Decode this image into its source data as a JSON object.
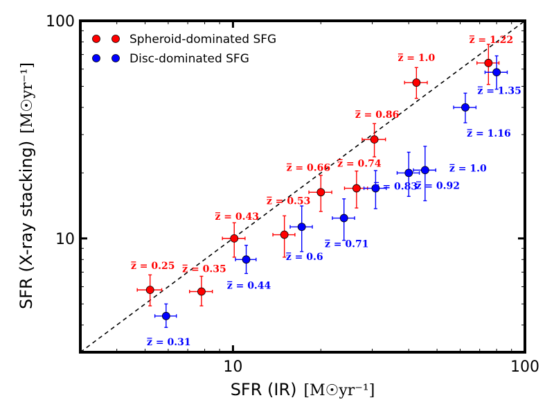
{
  "chart_data": {
    "type": "scatter",
    "title": "",
    "xlabel": "SFR (IR)",
    "xlabel_unit": "[M☉yr⁻¹]",
    "ylabel": "SFR (X-ray stacking)",
    "ylabel_unit": "[M☉yr⁻¹]",
    "xscale": "log",
    "yscale": "log",
    "xlim": [
      3,
      100
    ],
    "ylim": [
      3,
      100
    ],
    "xticks": [
      {
        "value": 10,
        "label": "10"
      },
      {
        "value": 100,
        "label": "100"
      }
    ],
    "yticks": [
      {
        "value": 10,
        "label": "10"
      },
      {
        "value": 100,
        "label": "100"
      }
    ],
    "grid": false,
    "legend_position": "top-left",
    "reference_line": {
      "type": "one-to-one",
      "style": "dashed",
      "color": "#000000"
    },
    "series": [
      {
        "name": "Spheroid-dominated SFG",
        "color": "#ff0000",
        "points": [
          {
            "x": 5.2,
            "y": 5.8,
            "xerr": [
              0.5,
              0.5
            ],
            "yerr": [
              0.9,
              1.0
            ],
            "label": "z̅ = 0.25"
          },
          {
            "x": 7.8,
            "y": 5.7,
            "xerr": [
              0.7,
              0.7
            ],
            "yerr": [
              0.8,
              1.0
            ],
            "label": "z̅ = 0.35"
          },
          {
            "x": 10.1,
            "y": 10.0,
            "xerr": [
              0.9,
              0.9
            ],
            "yerr": [
              1.8,
              1.8
            ],
            "label": "z̅ = 0.43"
          },
          {
            "x": 15.0,
            "y": 10.4,
            "xerr": [
              1.3,
              1.3
            ],
            "yerr": [
              2.2,
              2.3
            ],
            "label": "z̅ = 0.53"
          },
          {
            "x": 20.0,
            "y": 16.3,
            "xerr": [
              1.8,
              1.8
            ],
            "yerr": [
              3.0,
              3.2
            ],
            "label": "z̅ = 0.66"
          },
          {
            "x": 26.5,
            "y": 17.0,
            "xerr": [
              2.4,
              2.4
            ],
            "yerr": [
              3.2,
              3.4
            ],
            "label": "z̅ = 0.74"
          },
          {
            "x": 30.5,
            "y": 28.5,
            "xerr": [
              2.8,
              2.8
            ],
            "yerr": [
              4.8,
              5.2
            ],
            "label": "z̅ = 0.86"
          },
          {
            "x": 42.5,
            "y": 52.0,
            "xerr": [
              3.8,
              3.8
            ],
            "yerr": [
              8.0,
              9.0
            ],
            "label": "z̅ = 1.0"
          },
          {
            "x": 75.0,
            "y": 64.0,
            "xerr": [
              6.5,
              6.5
            ],
            "yerr": [
              13.0,
              14.0
            ],
            "label": "z̅ = 1.22"
          }
        ]
      },
      {
        "name": "Disc-dominated SFG",
        "color": "#0000ff",
        "points": [
          {
            "x": 5.9,
            "y": 4.4,
            "xerr": [
              0.5,
              0.5
            ],
            "yerr": [
              0.5,
              0.6
            ],
            "label": "z̅ = 0.31"
          },
          {
            "x": 11.1,
            "y": 8.0,
            "xerr": [
              0.9,
              0.9
            ],
            "yerr": [
              1.1,
              1.3
            ],
            "label": "z̅ = 0.44"
          },
          {
            "x": 17.2,
            "y": 11.3,
            "xerr": [
              1.5,
              1.5
            ],
            "yerr": [
              2.6,
              2.8
            ],
            "label": "z̅ = 0.6"
          },
          {
            "x": 24.0,
            "y": 12.4,
            "xerr": [
              2.1,
              2.1
            ],
            "yerr": [
              2.6,
              2.8
            ],
            "label": "z̅ = 0.71"
          },
          {
            "x": 30.8,
            "y": 17.0,
            "xerr": [
              2.7,
              2.7
            ],
            "yerr": [
              3.3,
              3.5
            ],
            "label": "z̅ = 0.83"
          },
          {
            "x": 40.0,
            "y": 20.0,
            "xerr": [
              3.5,
              3.5
            ],
            "yerr": [
              4.4,
              4.9
            ],
            "label": "z̅ = 0.92"
          },
          {
            "x": 45.5,
            "y": 20.6,
            "xerr": [
              4.0,
              4.0
            ],
            "yerr": [
              5.7,
              5.9
            ],
            "label": "z̅ = 1.0"
          },
          {
            "x": 62.5,
            "y": 40.0,
            "xerr": [
              5.5,
              5.5
            ],
            "yerr": [
              6.0,
              6.5
            ],
            "label": "z̅ = 1.16"
          },
          {
            "x": 80.0,
            "y": 58.0,
            "xerr": [
              7.0,
              7.0
            ],
            "yerr": [
              9.5,
              11.0
            ],
            "label": "z̅ = 1.35"
          }
        ]
      }
    ]
  }
}
